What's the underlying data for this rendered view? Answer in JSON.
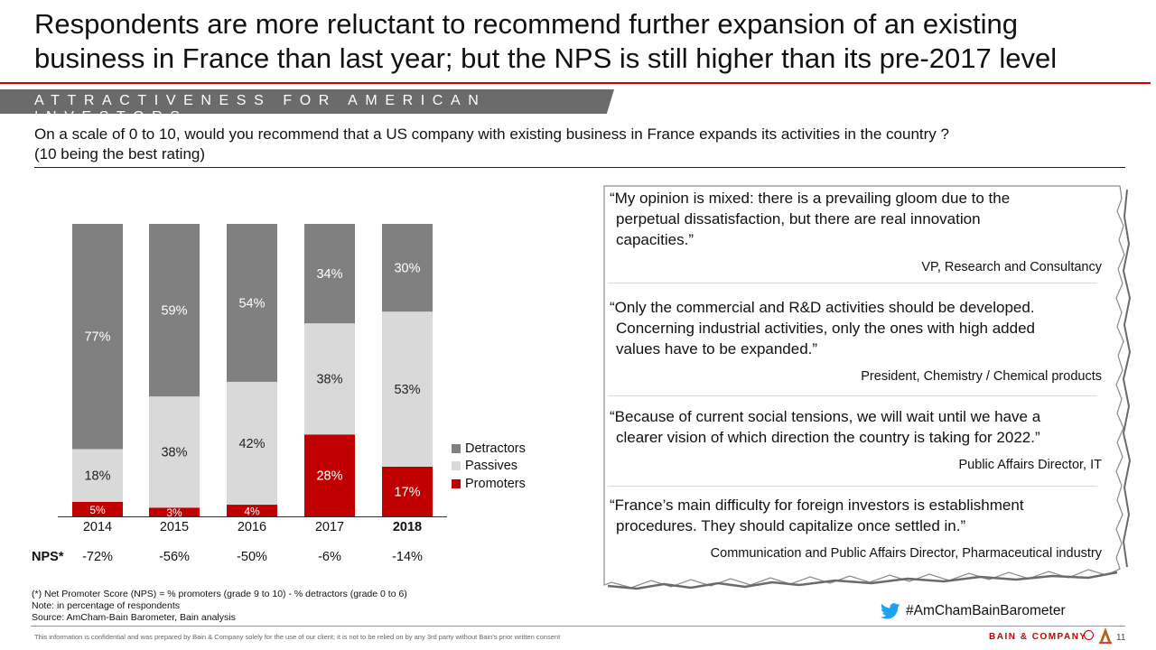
{
  "header": {
    "title_line1": "Respondents are more reluctant to recommend further expansion of an existing",
    "title_line2": "business in France than last year; but the NPS is still higher than its pre-2017 level",
    "section": "ATTRACTIVENESS FOR AMERICAN INVESTORS"
  },
  "question": {
    "line1": "On a scale of 0 to 10, would you recommend that a US company with existing business in France expands its activities in the country ?",
    "line2": "(10 being the best rating)"
  },
  "chart_data": {
    "type": "bar",
    "stacked": true,
    "categories": [
      "2014",
      "2015",
      "2016",
      "2017",
      "2018"
    ],
    "series": [
      {
        "name": "Promoters",
        "values": [
          5,
          3,
          4,
          28,
          17
        ],
        "labels": [
          "5%",
          "3%",
          "4%",
          "28%",
          "17%"
        ],
        "color": "#c00000"
      },
      {
        "name": "Passives",
        "values": [
          18,
          38,
          42,
          38,
          53
        ],
        "labels": [
          "18%",
          "38%",
          "42%",
          "38%",
          "53%"
        ],
        "color": "#d9d9d9"
      },
      {
        "name": "Detractors",
        "values": [
          77,
          59,
          54,
          34,
          30
        ],
        "labels": [
          "77%",
          "59%",
          "54%",
          "34%",
          "30%"
        ],
        "color": "#808080"
      }
    ],
    "ylim": [
      0,
      100
    ],
    "nps_label": "NPS*",
    "nps": [
      "-72%",
      "-56%",
      "-50%",
      "-6%",
      "-14%"
    ],
    "bold_category": "2018",
    "legend": [
      "Detractors",
      "Passives",
      "Promoters"
    ],
    "legend_position": "right"
  },
  "quotes": [
    {
      "text": [
        "“My opinion is mixed: there is a prevailing gloom due to the",
        "perpetual dissatisfaction, but there are real innovation",
        "capacities.”"
      ],
      "author": "VP, Research and Consultancy"
    },
    {
      "text": [
        "“Only the commercial and R&D activities should be developed.",
        "Concerning industrial activities, only the ones with high added",
        "values have to be expanded.”"
      ],
      "author": "President, Chemistry / Chemical products"
    },
    {
      "text": [
        "“Because of current social tensions, we will wait until we have a",
        "clearer vision of which direction the country is taking for 2022.”"
      ],
      "author": "Public Affairs Director, IT"
    },
    {
      "text": [
        "“France’s main difficulty for foreign investors is establishment",
        "procedures. They should capitalize once settled in.”"
      ],
      "author": "Communication and Public Affairs Director, Pharmaceutical industry"
    }
  ],
  "footnotes": [
    "(*) Net Promoter Score (NPS) = % promoters (grade 9 to 10) - % detractors (grade 0 to 6)",
    "Note: in percentage of respondents",
    "Source: AmCham-Bain Barometer, Bain analysis"
  ],
  "hashtag": "#AmChamBainBarometer",
  "footer": {
    "confidential": "This information is confidential and was prepared by Bain & Company solely for the use of our client; it is not to be relied on by any 3rd party without Bain's prior written consent",
    "brand": "BAIN & COMPANY",
    "page_number": "11"
  },
  "icons": {
    "twitter": "twitter-bird-icon",
    "brand_mark": "bain-circle-icon",
    "logo": "amcham-logo-icon"
  }
}
